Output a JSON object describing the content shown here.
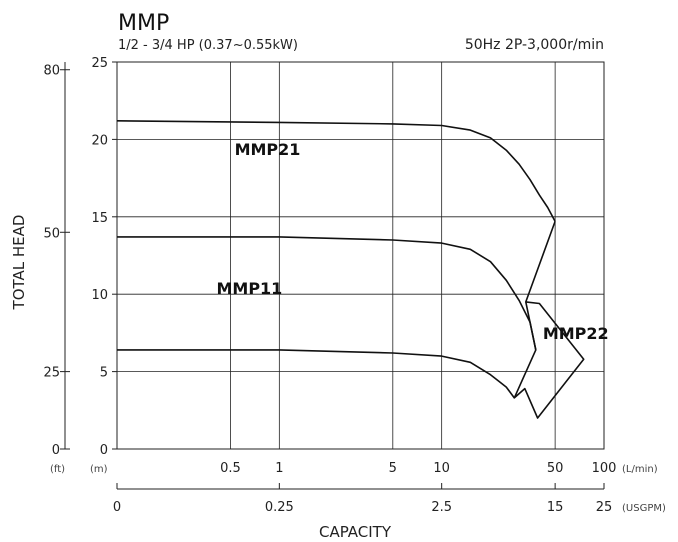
{
  "chart_data": {
    "type": "line",
    "title": "MMP",
    "subtitle": "1/2 - 3/4 HP (0.37~0.55kW)",
    "spec": "50Hz 2P-3,000r/min",
    "xlabel": "CAPACITY",
    "ylabel": "TOTAL HEAD",
    "x_scale": "log",
    "xlim": [
      0.1,
      100
    ],
    "ylim": [
      0,
      25
    ],
    "grid": true,
    "x_ticks_lmin": [
      "0.5",
      "1",
      "5",
      "10",
      "50",
      "100"
    ],
    "x_ticks_lmin_values": [
      0.5,
      1,
      5,
      10,
      50,
      100
    ],
    "x_unit_lmin": "(L/min)",
    "x_ticks_usgpm": [
      "0",
      "0.25",
      "2.5",
      "15",
      "25"
    ],
    "x_ticks_usgpm_values": [
      0.1,
      1,
      10,
      50,
      100
    ],
    "x_unit_usgpm": "(USGPM)",
    "y_ticks_m": [
      "0",
      "5",
      "10",
      "15",
      "20",
      "25"
    ],
    "y_ticks_m_values": [
      0,
      5,
      10,
      15,
      20,
      25
    ],
    "y_unit_m": "(m)",
    "y_ticks_ft": [
      "0",
      "25",
      "50",
      "80"
    ],
    "y_ticks_ft_values": [
      0,
      5,
      14,
      24.5
    ],
    "y_unit_ft": "(ft)",
    "series": [
      {
        "name": "MMP21",
        "label_pos": [
          0.53,
          19
        ],
        "points": [
          [
            0.1,
            21.2
          ],
          [
            1,
            21.1
          ],
          [
            5,
            21
          ],
          [
            10,
            20.9
          ],
          [
            15,
            20.6
          ],
          [
            20,
            20.1
          ],
          [
            25,
            19.3
          ],
          [
            30,
            18.4
          ],
          [
            35,
            17.4
          ],
          [
            40,
            16.4
          ],
          [
            45,
            15.6
          ],
          [
            50,
            14.7
          ]
        ]
      },
      {
        "name": "MMP11",
        "label_pos": [
          0.41,
          10
        ],
        "points": [
          [
            0.1,
            13.7
          ],
          [
            1,
            13.7
          ],
          [
            5,
            13.5
          ],
          [
            10,
            13.3
          ],
          [
            15,
            12.9
          ],
          [
            20,
            12.1
          ],
          [
            25,
            10.9
          ],
          [
            30,
            9.6
          ],
          [
            35,
            8.2
          ],
          [
            38,
            6.4
          ]
        ]
      },
      {
        "name": "MMP22",
        "label_pos": [
          42,
          7.1
        ],
        "points": [
          [
            0.1,
            6.4
          ],
          [
            1,
            6.4
          ],
          [
            5,
            6.2
          ],
          [
            10,
            6
          ],
          [
            15,
            5.6
          ],
          [
            20,
            4.8
          ],
          [
            25,
            4
          ],
          [
            28,
            3.3
          ]
        ]
      }
    ],
    "envelope": [
      [
        50,
        14.7
      ],
      [
        33,
        9.5
      ],
      [
        38,
        6.4
      ],
      [
        28,
        3.3
      ],
      [
        32.5,
        3.9
      ],
      [
        39,
        2
      ],
      [
        75,
        5.8
      ],
      [
        40,
        9.4
      ],
      [
        33,
        9.5
      ]
    ]
  }
}
